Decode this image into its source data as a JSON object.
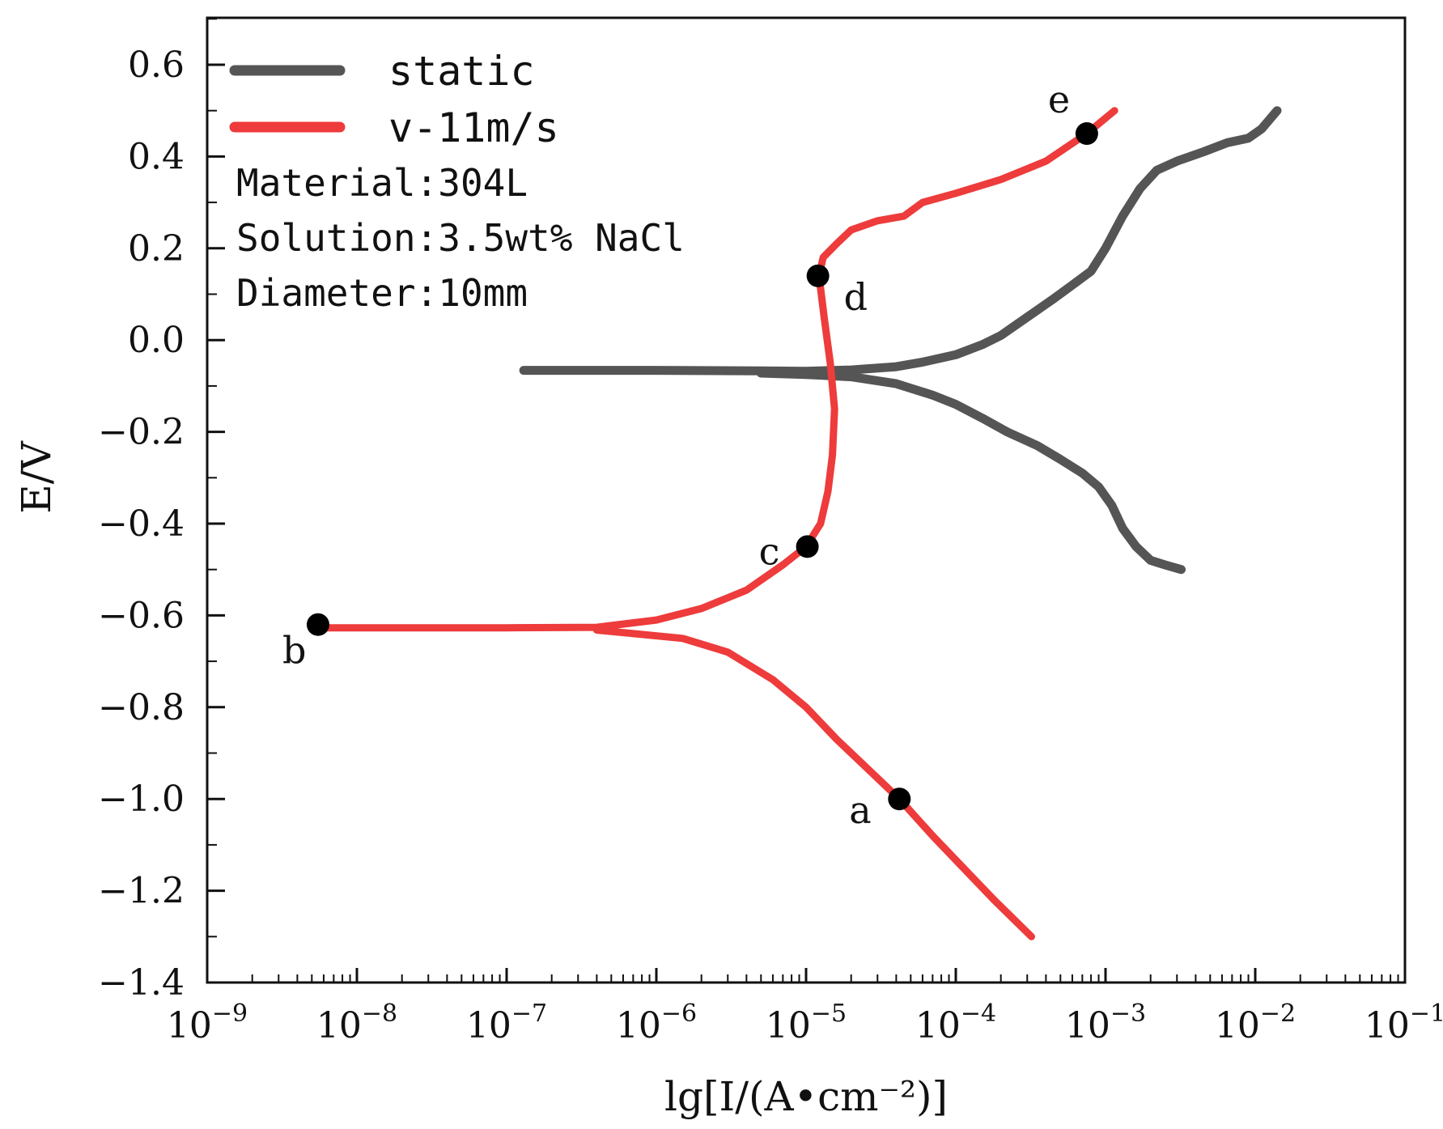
{
  "chart_data": {
    "type": "line",
    "x_scale": "log10",
    "xlabel": "lg[I/(A•cm⁻²)]",
    "ylabel": "E/V",
    "xlim": [
      1e-09,
      0.1
    ],
    "ylim": [
      -1.4,
      0.7
    ],
    "x_ticks": [
      {
        "value": 1e-09,
        "base": "10",
        "exp": "−9"
      },
      {
        "value": 1e-08,
        "base": "10",
        "exp": "−8"
      },
      {
        "value": 1e-07,
        "base": "10",
        "exp": "−7"
      },
      {
        "value": 1e-06,
        "base": "10",
        "exp": "−6"
      },
      {
        "value": 1e-05,
        "base": "10",
        "exp": "−5"
      },
      {
        "value": 0.0001,
        "base": "10",
        "exp": "−4"
      },
      {
        "value": 0.001,
        "base": "10",
        "exp": "−3"
      },
      {
        "value": 0.01,
        "base": "10",
        "exp": "−2"
      },
      {
        "value": 0.1,
        "base": "10",
        "exp": "−1"
      }
    ],
    "y_ticks": [
      {
        "value": 0.6,
        "label": "0.6"
      },
      {
        "value": 0.4,
        "label": "0.4"
      },
      {
        "value": 0.2,
        "label": "0.2"
      },
      {
        "value": 0.0,
        "label": "0.0"
      },
      {
        "value": -0.2,
        "label": "−0.2"
      },
      {
        "value": -0.4,
        "label": "−0.4"
      },
      {
        "value": -0.6,
        "label": "−0.6"
      },
      {
        "value": -0.8,
        "label": "−0.8"
      },
      {
        "value": -1.0,
        "label": "−1.0"
      },
      {
        "value": -1.2,
        "label": "−1.2"
      },
      {
        "value": -1.4,
        "label": "−1.4"
      }
    ],
    "legend": {
      "placement": "top-left"
    },
    "series": [
      {
        "name": "static",
        "color": "#555555",
        "segments": [
          [
            [
              1.3e-07,
              -0.066
            ],
            [
              1e-06,
              -0.066
            ],
            [
              5e-06,
              -0.067
            ],
            [
              1e-05,
              -0.068
            ],
            [
              2e-05,
              -0.065
            ],
            [
              4e-05,
              -0.058
            ],
            [
              6e-05,
              -0.048
            ],
            [
              0.0001,
              -0.032
            ],
            [
              0.00015,
              -0.01
            ],
            [
              0.0002,
              0.01
            ],
            [
              0.0003,
              0.05
            ],
            [
              0.00045,
              0.09
            ],
            [
              0.0006,
              0.12
            ],
            [
              0.0008,
              0.15
            ],
            [
              0.001,
              0.2
            ],
            [
              0.0013,
              0.27
            ],
            [
              0.0017,
              0.33
            ],
            [
              0.0022,
              0.37
            ],
            [
              0.003,
              0.39
            ],
            [
              0.0045,
              0.41
            ],
            [
              0.0065,
              0.43
            ],
            [
              0.009,
              0.44
            ],
            [
              0.011,
              0.46
            ],
            [
              0.014,
              0.5
            ]
          ],
          [
            [
              5e-06,
              -0.072
            ],
            [
              1e-05,
              -0.075
            ],
            [
              2e-05,
              -0.08
            ],
            [
              4e-05,
              -0.095
            ],
            [
              7e-05,
              -0.12
            ],
            [
              0.0001,
              -0.14
            ],
            [
              0.00015,
              -0.17
            ],
            [
              0.00022,
              -0.2
            ],
            [
              0.00035,
              -0.23
            ],
            [
              0.0005,
              -0.26
            ],
            [
              0.0007,
              -0.29
            ],
            [
              0.0009,
              -0.32
            ],
            [
              0.0011,
              -0.36
            ],
            [
              0.0013,
              -0.41
            ],
            [
              0.0016,
              -0.45
            ],
            [
              0.002,
              -0.48
            ],
            [
              0.0025,
              -0.49
            ],
            [
              0.0032,
              -0.5
            ]
          ]
        ]
      },
      {
        "name": "v-11m/s",
        "color": "#ee3b3b",
        "segments": [
          [
            [
              5.5e-09,
              -0.627
            ],
            [
              1e-07,
              -0.627
            ],
            [
              4e-07,
              -0.626
            ],
            [
              1e-06,
              -0.61
            ],
            [
              2e-06,
              -0.585
            ],
            [
              4e-06,
              -0.545
            ],
            [
              7e-06,
              -0.49
            ],
            [
              1e-05,
              -0.45
            ],
            [
              1.25e-05,
              -0.4
            ],
            [
              1.4e-05,
              -0.33
            ],
            [
              1.5e-05,
              -0.25
            ],
            [
              1.55e-05,
              -0.15
            ],
            [
              1.45e-05,
              -0.05
            ],
            [
              1.32e-05,
              0.05
            ],
            [
              1.22e-05,
              0.14
            ],
            [
              1.3e-05,
              0.18
            ],
            [
              1.6e-05,
              0.21
            ],
            [
              2e-05,
              0.24
            ],
            [
              3e-05,
              0.26
            ],
            [
              4.5e-05,
              0.27
            ],
            [
              6e-05,
              0.3
            ],
            [
              0.0001,
              0.32
            ],
            [
              0.0002,
              0.35
            ],
            [
              0.0004,
              0.39
            ],
            [
              0.00075,
              0.45
            ],
            [
              0.00115,
              0.5
            ]
          ],
          [
            [
              4e-07,
              -0.632
            ],
            [
              1.5e-06,
              -0.65
            ],
            [
              3e-06,
              -0.68
            ],
            [
              6e-06,
              -0.74
            ],
            [
              1e-05,
              -0.8
            ],
            [
              1.6e-05,
              -0.87
            ],
            [
              2.5e-05,
              -0.93
            ],
            [
              4.2e-05,
              -1.0
            ],
            [
              7e-05,
              -1.08
            ],
            [
              0.00012,
              -1.16
            ],
            [
              0.00018,
              -1.22
            ],
            [
              0.00032,
              -1.3
            ]
          ]
        ]
      }
    ],
    "annotations": [
      {
        "label": "a",
        "x": 4.2e-05,
        "y": -1.0
      },
      {
        "label": "b",
        "x": 5.5e-09,
        "y": -0.62
      },
      {
        "label": "c",
        "x": 1.02e-05,
        "y": -0.45
      },
      {
        "label": "d",
        "x": 1.2e-05,
        "y": 0.14
      },
      {
        "label": "e",
        "x": 0.00075,
        "y": 0.45
      }
    ],
    "notes": [
      "Material:304L",
      "Solution:3.5wt% NaCl",
      "Diameter:10mm"
    ]
  }
}
